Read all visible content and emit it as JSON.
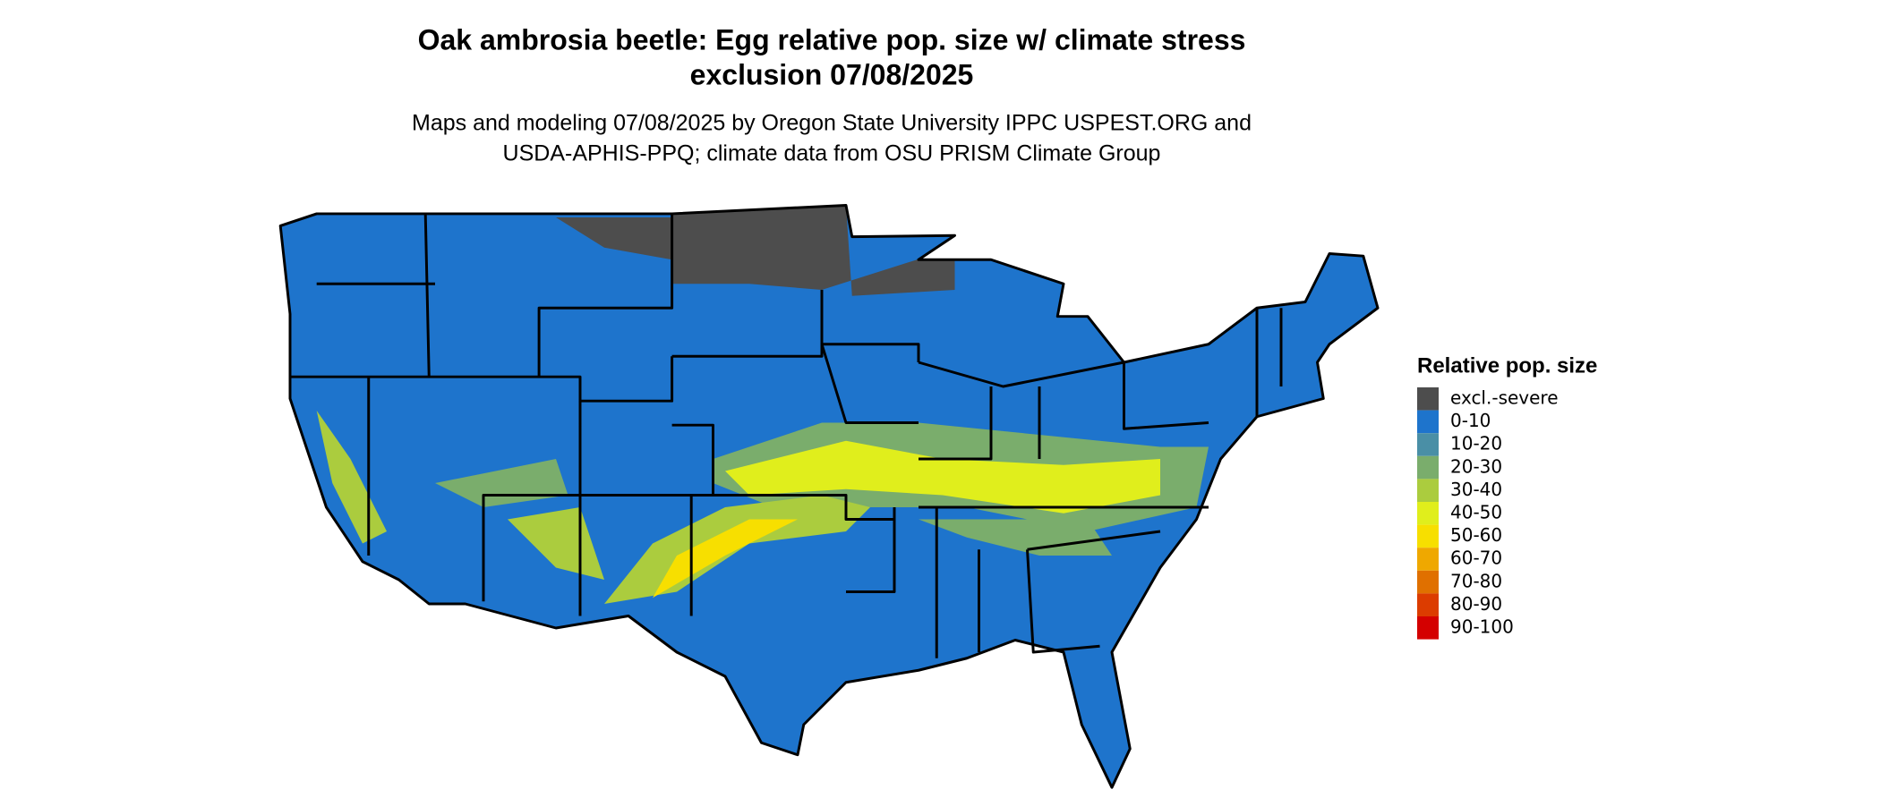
{
  "title": [
    "Oak ambrosia beetle: Egg relative pop. size w/ climate stress",
    "exclusion 07/08/2025"
  ],
  "subtitle": [
    "Maps and modeling 07/08/2025 by Oregon State University IPPC USPEST.ORG and",
    "USDA-APHIS-PPQ; climate data from OSU PRISM Climate Group"
  ],
  "legend": {
    "title": "Relative pop. size",
    "items": [
      {
        "label": "excl.-severe",
        "color": "#4d4d4d"
      },
      {
        "label": "0-10",
        "color": "#1e74cc"
      },
      {
        "label": "10-20",
        "color": "#4a8fa6"
      },
      {
        "label": "20-30",
        "color": "#7aad6c"
      },
      {
        "label": "30-40",
        "color": "#abcc3e"
      },
      {
        "label": "40-50",
        "color": "#e0ee1c"
      },
      {
        "label": "50-60",
        "color": "#f7df00"
      },
      {
        "label": "60-70",
        "color": "#efa800"
      },
      {
        "label": "70-80",
        "color": "#e07000"
      },
      {
        "label": "80-90",
        "color": "#dc3c00"
      },
      {
        "label": "90-100",
        "color": "#d40000"
      }
    ]
  }
}
